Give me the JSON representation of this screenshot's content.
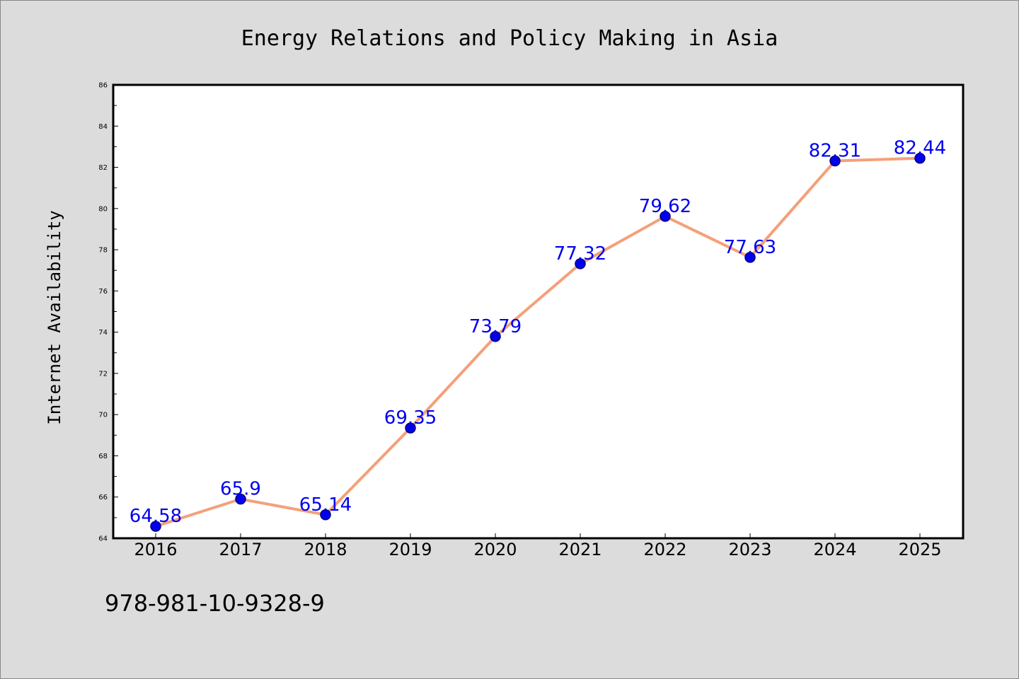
{
  "chart_data": {
    "type": "line",
    "title": "Energy Relations and Policy Making in Asia",
    "xlabel": "",
    "ylabel": "Internet Availability",
    "categories": [
      "2016",
      "2017",
      "2018",
      "2019",
      "2020",
      "2021",
      "2022",
      "2023",
      "2024",
      "2025"
    ],
    "series": [
      {
        "values": [
          64.58,
          65.9,
          65.14,
          69.35,
          73.79,
          77.32,
          79.62,
          77.63,
          82.31,
          82.44
        ],
        "labels": [
          "64.58",
          "65.9",
          "65.14",
          "69.35",
          "73.79",
          "77.32",
          "79.62",
          "77.63",
          "82.31",
          "82.44"
        ]
      }
    ],
    "ylim": [
      64,
      86
    ],
    "yticks": [
      "64",
      "66",
      "68",
      "70",
      "72",
      "74",
      "76",
      "78",
      "80",
      "82",
      "84",
      "86"
    ],
    "grid": false,
    "legend": "none",
    "colors": {
      "line": "#f4a07a",
      "marker": "#0000ee",
      "marker_edge": "#00007a",
      "data_label": "#0000ee",
      "plot_background": "#ffffff",
      "figure_background": "#dcdcdc"
    }
  },
  "annotation": "978-981-10-9328-9"
}
